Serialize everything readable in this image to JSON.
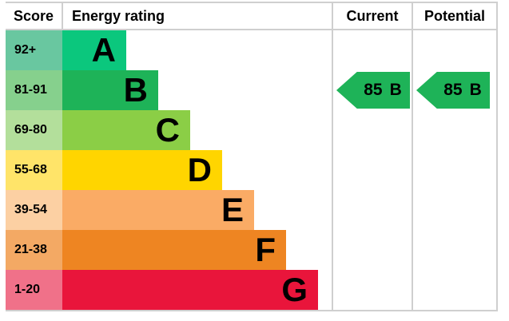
{
  "header": {
    "score": "Score",
    "energy_rating": "Energy rating",
    "current": "Current",
    "potential": "Potential"
  },
  "bands": [
    {
      "letter": "A",
      "score_range": "92+",
      "bar_color": "#0bc77d",
      "score_cell_color": "#69c7a0"
    },
    {
      "letter": "B",
      "score_range": "81-91",
      "bar_color": "#1eb358",
      "score_cell_color": "#86d08d"
    },
    {
      "letter": "C",
      "score_range": "69-80",
      "bar_color": "#8bce46",
      "score_cell_color": "#b3df9b"
    },
    {
      "letter": "D",
      "score_range": "55-68",
      "bar_color": "#ffd500",
      "score_cell_color": "#ffe469"
    },
    {
      "letter": "E",
      "score_range": "39-54",
      "bar_color": "#faab65",
      "score_cell_color": "#fcd0a3"
    },
    {
      "letter": "F",
      "score_range": "21-38",
      "bar_color": "#ee8522",
      "score_cell_color": "#f3a964"
    },
    {
      "letter": "G",
      "score_range": "1-20",
      "bar_color": "#e9153b",
      "score_cell_color": "#f07189"
    }
  ],
  "current": {
    "value": "85",
    "band": "B",
    "arrow_color": "#1eb358"
  },
  "potential": {
    "value": "85",
    "band": "B",
    "arrow_color": "#1eb358"
  },
  "border_color": "#cfcfcf",
  "chart_data": {
    "type": "bar",
    "title": "Energy rating",
    "columns": [
      "Score",
      "Energy rating",
      "Current",
      "Potential"
    ],
    "categories": [
      "A",
      "B",
      "C",
      "D",
      "E",
      "F",
      "G"
    ],
    "score_ranges": [
      "92+",
      "81-91",
      "69-80",
      "55-68",
      "39-54",
      "21-38",
      "1-20"
    ],
    "bar_relative_widths": [
      1,
      2,
      3,
      4,
      5,
      6,
      7
    ],
    "current_rating": {
      "score": 85,
      "band": "B"
    },
    "potential_rating": {
      "score": 85,
      "band": "B"
    },
    "band_colors": [
      "#0bc77d",
      "#1eb358",
      "#8bce46",
      "#ffd500",
      "#faab65",
      "#ee8522",
      "#e9153b"
    ],
    "legend_position": "none",
    "grid": false
  }
}
